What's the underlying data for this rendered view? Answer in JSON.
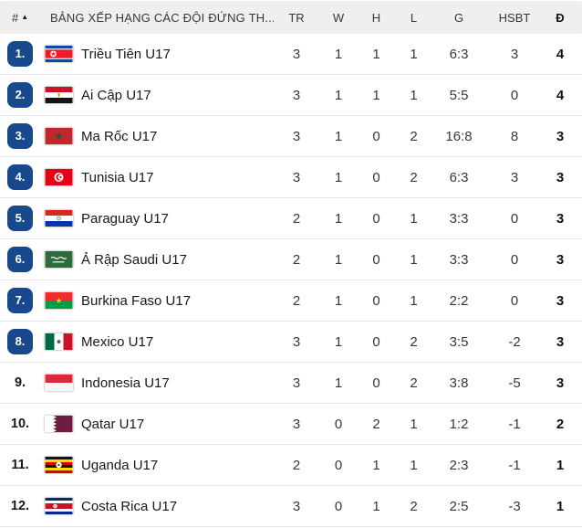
{
  "colors": {
    "badge_bg": "#17498c",
    "badge_text": "#ffffff",
    "header_bg": "#efefef",
    "divider": "#e6e6e6"
  },
  "table": {
    "rank_header": "#",
    "sort_arrow": "▲",
    "title": "BẢNG XẾP HẠNG CÁC ĐỘI ĐỨNG TH...",
    "columns": [
      "TR",
      "W",
      "H",
      "L",
      "G",
      "HSBT",
      "Đ"
    ],
    "rows": [
      {
        "rank": "1.",
        "badge": true,
        "flag": "north-korea",
        "team": "Triều Tiên U17",
        "stats": [
          "3",
          "1",
          "1",
          "1",
          "6:3",
          "3",
          "4"
        ]
      },
      {
        "rank": "2.",
        "badge": true,
        "flag": "egypt",
        "team": "Ai Cập U17",
        "stats": [
          "3",
          "1",
          "1",
          "1",
          "5:5",
          "0",
          "4"
        ]
      },
      {
        "rank": "3.",
        "badge": true,
        "flag": "morocco",
        "team": "Ma Rốc U17",
        "stats": [
          "3",
          "1",
          "0",
          "2",
          "16:8",
          "8",
          "3"
        ]
      },
      {
        "rank": "4.",
        "badge": true,
        "flag": "tunisia",
        "team": "Tunisia U17",
        "stats": [
          "3",
          "1",
          "0",
          "2",
          "6:3",
          "3",
          "3"
        ]
      },
      {
        "rank": "5.",
        "badge": true,
        "flag": "paraguay",
        "team": "Paraguay U17",
        "stats": [
          "2",
          "1",
          "0",
          "1",
          "3:3",
          "0",
          "3"
        ]
      },
      {
        "rank": "6.",
        "badge": true,
        "flag": "saudi-arabia",
        "team": "Ả Rập Saudi U17",
        "stats": [
          "2",
          "1",
          "0",
          "1",
          "3:3",
          "0",
          "3"
        ]
      },
      {
        "rank": "7.",
        "badge": true,
        "flag": "burkina-faso",
        "team": "Burkina Faso U17",
        "stats": [
          "2",
          "1",
          "0",
          "1",
          "2:2",
          "0",
          "3"
        ]
      },
      {
        "rank": "8.",
        "badge": true,
        "flag": "mexico",
        "team": "Mexico U17",
        "stats": [
          "3",
          "1",
          "0",
          "2",
          "3:5",
          "-2",
          "3"
        ]
      },
      {
        "rank": "9.",
        "badge": false,
        "flag": "indonesia",
        "team": "Indonesia U17",
        "stats": [
          "3",
          "1",
          "0",
          "2",
          "3:8",
          "-5",
          "3"
        ]
      },
      {
        "rank": "10.",
        "badge": false,
        "flag": "qatar",
        "team": "Qatar U17",
        "stats": [
          "3",
          "0",
          "2",
          "1",
          "1:2",
          "-1",
          "2"
        ]
      },
      {
        "rank": "11.",
        "badge": false,
        "flag": "uganda",
        "team": "Uganda U17",
        "stats": [
          "2",
          "0",
          "1",
          "1",
          "2:3",
          "-1",
          "1"
        ]
      },
      {
        "rank": "12.",
        "badge": false,
        "flag": "costa-rica",
        "team": "Costa Rica U17",
        "stats": [
          "3",
          "0",
          "1",
          "2",
          "2:5",
          "-3",
          "1"
        ]
      }
    ]
  }
}
